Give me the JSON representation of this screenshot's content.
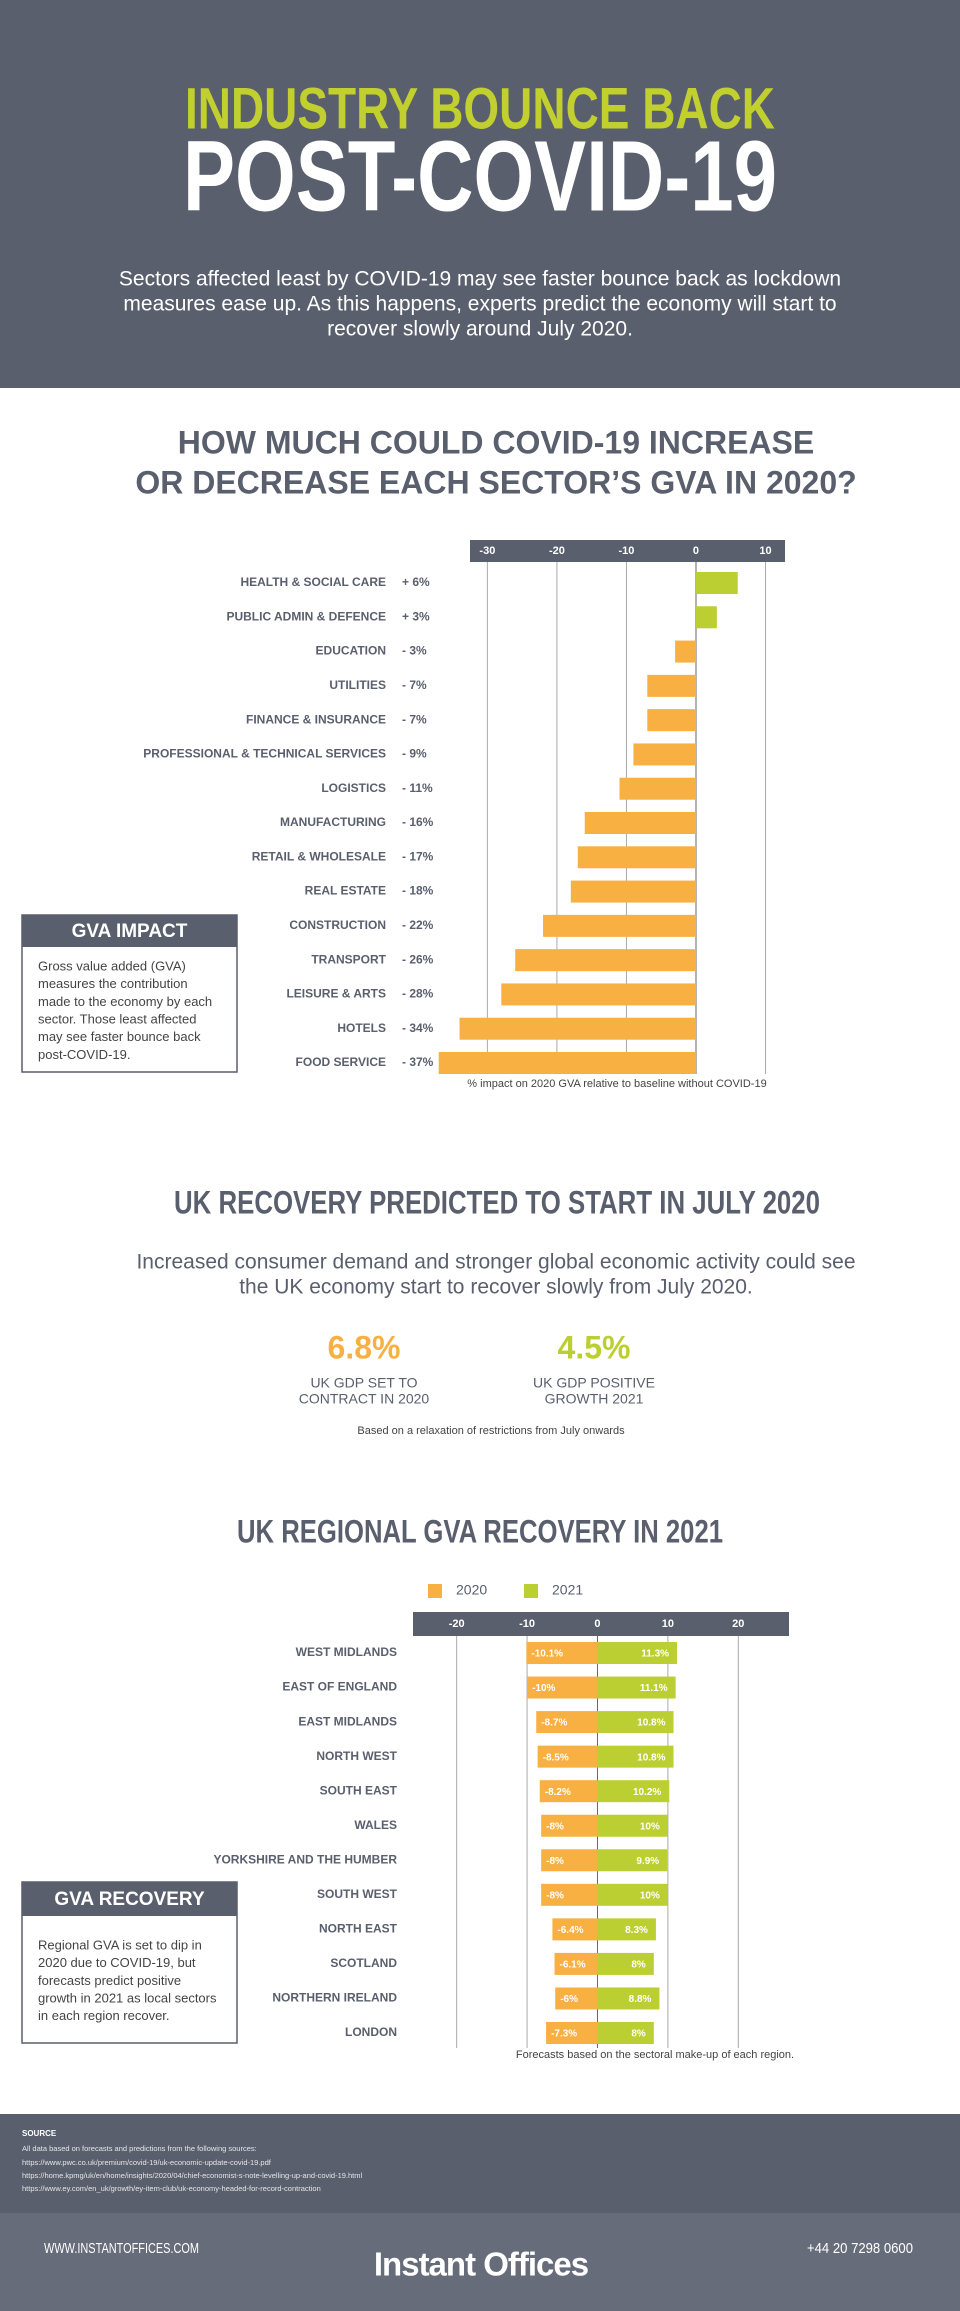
{
  "header": {
    "title_line1": "INDUSTRY BOUNCE BACK",
    "title_line2": "POST-COVID-19",
    "intro_lines": [
      "Sectors affected least by COVID-19 may see faster bounce back as lockdown",
      "measures ease up. As this happens, experts predict the economy will start to",
      "recover slowly around July 2020."
    ]
  },
  "chart_data": [
    {
      "type": "bar",
      "title_lines": [
        "HOW MUCH COULD COVID-19 INCREASE",
        "OR DECREASE EACH SECTOR’S GVA IN 2020?"
      ],
      "categories": [
        "HEALTH & SOCIAL CARE",
        "PUBLIC ADMIN & DEFENCE",
        "EDUCATION",
        "UTILITIES",
        "FINANCE & INSURANCE",
        "PROFESSIONAL & TECHNICAL SERVICES",
        "LOGISTICS",
        "MANUFACTURING",
        "RETAIL & WHOLESALE",
        "REAL ESTATE",
        "CONSTRUCTION",
        "TRANSPORT",
        "LEISURE & ARTS",
        "HOTELS",
        "FOOD SERVICE"
      ],
      "values": [
        6,
        3,
        -3,
        -7,
        -7,
        -9,
        -11,
        -16,
        -17,
        -18,
        -22,
        -26,
        -28,
        -34,
        -37
      ],
      "value_labels": [
        "+ 6%",
        "+ 3%",
        "- 3%",
        "- 7%",
        "- 7%",
        "- 9%",
        "- 11%",
        "- 16%",
        "- 17%",
        "- 18%",
        "- 22%",
        "- 26%",
        "- 28%",
        "- 34%",
        "- 37%"
      ],
      "positive_color": "#bccf32",
      "negative_color": "#f9b042",
      "xlim": [
        -32.5,
        12.8
      ],
      "xticks": [
        -30,
        -20,
        -10,
        0,
        10
      ],
      "grid": true,
      "x_label": "% impact on 2020 GVA relative to baseline without COVID-19",
      "info_box": {
        "title": "GVA IMPACT",
        "lines": [
          "Gross value added (GVA)",
          "measures the contribution",
          "made to the economy by each",
          "sector. Those least affected",
          "may see faster bounce back",
          "post-COVID-19."
        ]
      }
    },
    {
      "type": "grouped_bar",
      "title": "UK REGIONAL GVA RECOVERY IN 2021",
      "categories": [
        "WEST MIDLANDS",
        "EAST OF ENGLAND",
        "EAST MIDLANDS",
        "NORTH WEST",
        "SOUTH EAST",
        "WALES",
        "YORKSHIRE AND THE HUMBER",
        "SOUTH WEST",
        "NORTH EAST",
        "SCOTLAND",
        "NORTHERN IRELAND",
        "LONDON"
      ],
      "series": [
        {
          "name": "2020",
          "color": "#f9b042",
          "values": [
            -10.1,
            -10,
            -8.7,
            -8.5,
            -8.2,
            -8,
            -8,
            -8,
            -6.4,
            -6.1,
            -6,
            -7.3
          ],
          "value_labels": [
            "-10.1%",
            "-10%",
            "-8.7%",
            "-8.5%",
            "-8.2%",
            "-8%",
            "-8%",
            "-8%",
            "-6.4%",
            "-6.1%",
            "-6%",
            "-7.3%"
          ]
        },
        {
          "name": "2021",
          "color": "#bccf32",
          "values": [
            11.3,
            11.1,
            10.8,
            10.8,
            10.2,
            10,
            9.9,
            10,
            8.3,
            8,
            8.8,
            8
          ],
          "value_labels": [
            "11.3%",
            "11.1%",
            "10.8%",
            "10.8%",
            "10.2%",
            "10%",
            "9.9%",
            "10%",
            "8.3%",
            "8%",
            "8.8%",
            "8%"
          ]
        }
      ],
      "xlim": [
        -26.2,
        27.2
      ],
      "xticks": [
        -20,
        -10,
        0,
        10,
        20
      ],
      "grid": true,
      "x_label": "Forecasts based on the sectoral make-up of each region.",
      "info_box": {
        "title": "GVA RECOVERY",
        "lines": [
          "Regional GVA is set to dip in",
          "2020 due to COVID-19, but",
          "forecasts predict positive",
          "growth in 2021 as local sectors",
          "in each region recover."
        ]
      }
    }
  ],
  "recovery": {
    "title": "UK RECOVERY PREDICTED TO START IN JULY 2020",
    "intro_lines": [
      "Increased consumer demand and stronger global economic activity could see",
      "the UK economy start to recover slowly from July 2020."
    ],
    "stats": [
      {
        "figure": "6.8%",
        "color": "#f9b042",
        "label_lines": [
          "UK GDP SET TO",
          "CONTRACT IN 2020"
        ]
      },
      {
        "figure": "4.5%",
        "color": "#bccf32",
        "label_lines": [
          "UK GDP POSITIVE",
          "GROWTH 2021"
        ]
      }
    ],
    "note": "Based on a relaxation of restrictions from July onwards"
  },
  "source": {
    "title": "SOURCE",
    "intro": "All data based on forecasts and predictions from the following sources:",
    "links": [
      "https://www.pwc.co.uk/premium/covid-19/uk-economic-update-covid-19.pdf",
      "https://home.kpmg/uk/en/home/insights/2020/04/chief-economist-s-note-levelling-up-and-covid-19.html",
      "https://www.ey.com/en_uk/growth/ey-item-club/uk-economy-headed-for-record-contraction"
    ]
  },
  "footer": {
    "website": "WWW.INSTANTOFFICES.COM",
    "brand": "Instant Offices",
    "phone": "+44 20 7298 0600"
  }
}
